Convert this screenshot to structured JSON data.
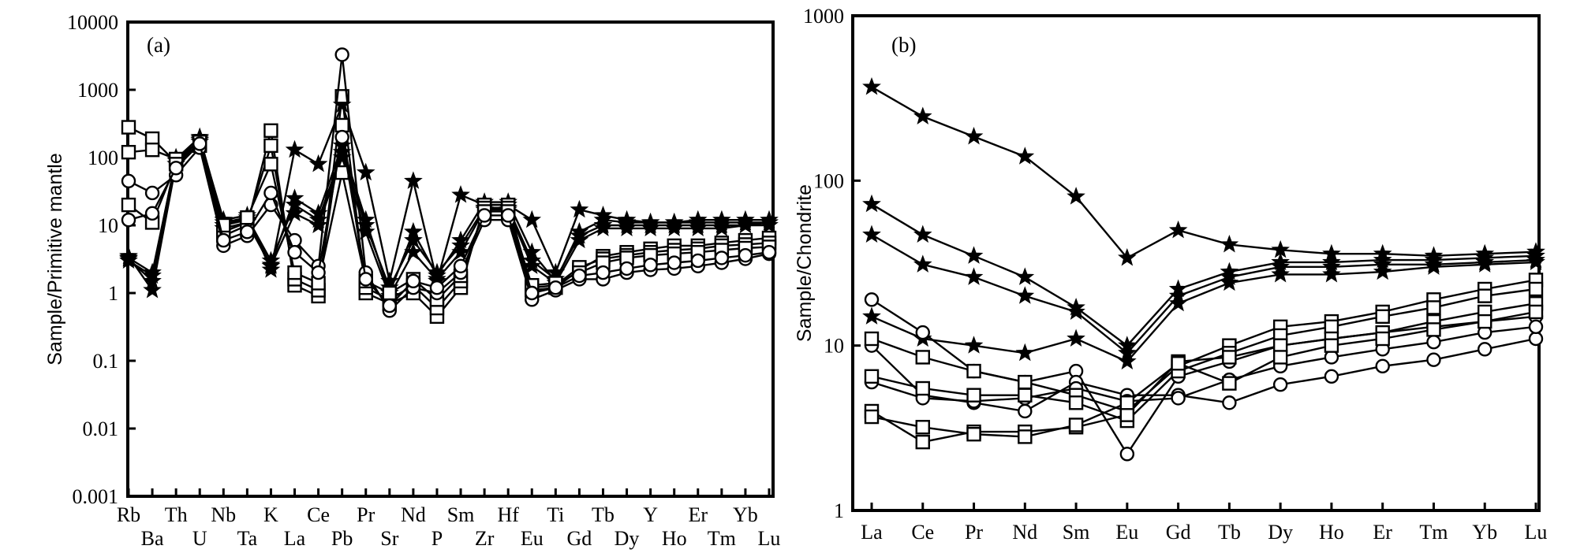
{
  "chart_data": [
    {
      "type": "line",
      "panel_label": "(a)",
      "title": "",
      "xlabel": "",
      "ylabel": "Sample/Primitive mantle",
      "yscale": "log",
      "ylim": [
        0.001,
        10000
      ],
      "yticks": [
        "0.001",
        "0.01",
        "0.1",
        "1",
        "10",
        "100",
        "1000",
        "10000"
      ],
      "categories": [
        "Rb",
        "Ba",
        "Th",
        "U",
        "Nb",
        "Ta",
        "K",
        "La",
        "Ce",
        "Pb",
        "Pr",
        "Sr",
        "Nd",
        "P",
        "Sm",
        "Zr",
        "Hf",
        "Eu",
        "Ti",
        "Gd",
        "Tb",
        "Dy",
        "Y",
        "Ho",
        "Er",
        "Tm",
        "Yb",
        "Lu"
      ],
      "series": [
        {
          "name": "star-1",
          "marker": "star",
          "values": [
            3.5,
            1.1,
            80,
            190,
            12,
            14,
            2.2,
            130,
            80,
            600,
            60,
            1.5,
            45,
            1.5,
            28,
            20,
            20,
            12,
            2.0,
            17,
            14,
            12,
            11,
            11,
            12,
            12,
            12,
            12
          ]
        },
        {
          "name": "star-2",
          "marker": "star",
          "values": [
            3.2,
            1.5,
            90,
            180,
            10,
            12,
            2.6,
            25,
            15,
            150,
            12,
            1.0,
            8,
            1.8,
            6,
            22,
            22,
            4,
            1.5,
            8,
            12,
            11,
            11,
            11,
            11,
            11,
            11,
            11
          ]
        },
        {
          "name": "star-3",
          "marker": "star",
          "values": [
            3.3,
            2.0,
            95,
            200,
            11,
            13,
            3.0,
            20,
            12,
            120,
            10,
            1.2,
            6,
            2.0,
            5,
            18,
            18,
            3,
            1.6,
            7,
            10,
            10,
            10,
            10,
            10,
            10,
            10,
            11
          ]
        },
        {
          "name": "star-4",
          "marker": "star",
          "values": [
            3.0,
            1.8,
            100,
            170,
            9,
            11,
            2.5,
            15,
            10,
            100,
            8,
            0.9,
            4,
            1.6,
            4,
            17,
            17,
            2.5,
            1.4,
            6,
            9,
            9,
            9,
            9,
            9,
            9,
            10,
            10
          ]
        },
        {
          "name": "square-1",
          "marker": "square",
          "values": [
            280,
            190,
            85,
            160,
            7,
            10,
            250,
            1.3,
            0.9,
            800,
            1.0,
            0.7,
            1.0,
            0.45,
            1.2,
            20,
            20,
            1.1,
            1.2,
            2.2,
            3.5,
            4,
            4.5,
            5,
            5,
            5.5,
            6,
            6.5
          ]
        },
        {
          "name": "square-2",
          "marker": "square",
          "values": [
            120,
            130,
            95,
            170,
            8,
            11,
            150,
            1.6,
            1.1,
            300,
            1.2,
            0.8,
            1.3,
            0.6,
            1.5,
            18,
            18,
            1.2,
            1.3,
            2.4,
            3.2,
            3.6,
            4,
            4.3,
            4.5,
            5,
            5.2,
            5.5
          ]
        },
        {
          "name": "square-3",
          "marker": "square",
          "values": [
            20,
            11,
            80,
            150,
            10,
            13,
            80,
            2.0,
            1.4,
            60,
            1.5,
            1.0,
            1.6,
            0.8,
            1.8,
            16,
            16,
            1.3,
            1.4,
            2.0,
            2.8,
            3.3,
            3.6,
            3.8,
            4,
            4.3,
            4.6,
            4.8
          ]
        },
        {
          "name": "circle-1",
          "marker": "circle",
          "values": [
            45,
            30,
            55,
            140,
            5,
            7,
            20,
            6,
            2.5,
            3300,
            2.0,
            0.55,
            1.2,
            1.0,
            2.0,
            12,
            12,
            0.8,
            1.1,
            1.6,
            1.6,
            2.0,
            2.2,
            2.3,
            2.5,
            2.8,
            3.2,
            3.8
          ]
        },
        {
          "name": "circle-2",
          "marker": "circle",
          "values": [
            12,
            15,
            70,
            160,
            6,
            8,
            30,
            4,
            2.0,
            200,
            1.6,
            0.65,
            1.5,
            1.2,
            2.5,
            14,
            14,
            1.0,
            1.2,
            1.8,
            2.0,
            2.3,
            2.6,
            2.8,
            3.0,
            3.3,
            3.6,
            4.0
          ]
        }
      ]
    },
    {
      "type": "line",
      "panel_label": "(b)",
      "title": "",
      "xlabel": "",
      "ylabel": "Sample/Chondrite",
      "yscale": "log",
      "ylim": [
        1,
        1000
      ],
      "yticks": [
        "1",
        "10",
        "100",
        "1000"
      ],
      "categories": [
        "La",
        "Ce",
        "Pr",
        "Nd",
        "Sm",
        "Eu",
        "Gd",
        "Tb",
        "Dy",
        "Ho",
        "Er",
        "Tm",
        "Yb",
        "Lu"
      ],
      "series": [
        {
          "name": "star-1",
          "marker": "star",
          "values": [
            370,
            245,
            185,
            140,
            80,
            34,
            50,
            41,
            38,
            36,
            36,
            35,
            36,
            37
          ]
        },
        {
          "name": "star-2",
          "marker": "star",
          "values": [
            72,
            47,
            35,
            26,
            17,
            10,
            22,
            28,
            32,
            32,
            33,
            33,
            34,
            35
          ]
        },
        {
          "name": "star-3",
          "marker": "star",
          "values": [
            47,
            31,
            26,
            20,
            16,
            9,
            20,
            26,
            30,
            30,
            31,
            31,
            32,
            33
          ]
        },
        {
          "name": "star-4",
          "marker": "star",
          "values": [
            15,
            11,
            10,
            9,
            11,
            8,
            18,
            24,
            27,
            27,
            28,
            30,
            31,
            32
          ]
        },
        {
          "name": "circle-1",
          "marker": "circle",
          "values": [
            19,
            12,
            7,
            6,
            7,
            2.2,
            6.5,
            8,
            10,
            11,
            12,
            13,
            14,
            15
          ]
        },
        {
          "name": "circle-2",
          "marker": "circle",
          "values": [
            10,
            5,
            4.5,
            4,
            6,
            5,
            5,
            4.5,
            5.8,
            6.5,
            7.5,
            8.2,
            9.5,
            11
          ]
        },
        {
          "name": "circle-3",
          "marker": "circle",
          "values": [
            6,
            4.8,
            4.6,
            4.8,
            5.5,
            4.6,
            4.8,
            6.2,
            7.5,
            8.5,
            9.5,
            10.5,
            12,
            13
          ]
        },
        {
          "name": "square-1",
          "marker": "square",
          "values": [
            11,
            8.5,
            7,
            6,
            5,
            4,
            7.5,
            10,
            13,
            14,
            16,
            19,
            22,
            25
          ]
        },
        {
          "name": "square-2",
          "marker": "square",
          "values": [
            6.5,
            5.5,
            5,
            5,
            4.5,
            3.5,
            7,
            9,
            11.5,
            13,
            15,
            17,
            20,
            22
          ]
        },
        {
          "name": "square-3",
          "marker": "square",
          "values": [
            4,
            2.6,
            3,
            3,
            3.2,
            3.8,
            8,
            8.5,
            10,
            11,
            12,
            14,
            16,
            18
          ]
        },
        {
          "name": "square-4",
          "marker": "square",
          "values": [
            3.7,
            3.2,
            2.9,
            2.8,
            3.3,
            4.5,
            7.8,
            5.9,
            8.5,
            10,
            11,
            12.5,
            14,
            16
          ]
        }
      ]
    }
  ]
}
